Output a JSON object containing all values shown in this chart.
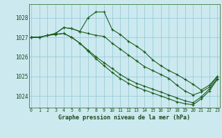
{
  "title": "Graphe pression niveau de la mer (hPa)",
  "bg_color": "#cce9f0",
  "grid_color": "#99ccd8",
  "line_color": "#1a5c1a",
  "ylim": [
    1023.4,
    1028.7
  ],
  "xlim": [
    -0.3,
    23.3
  ],
  "yticks": [
    1024,
    1025,
    1026,
    1027,
    1028
  ],
  "xticks": [
    0,
    1,
    2,
    3,
    4,
    5,
    6,
    7,
    8,
    9,
    10,
    11,
    12,
    13,
    14,
    15,
    16,
    17,
    18,
    19,
    20,
    21,
    22,
    23
  ],
  "series": [
    [
      1027.0,
      1027.0,
      1027.1,
      1027.2,
      1027.5,
      1027.45,
      1027.3,
      1028.0,
      1028.3,
      1028.3,
      1027.4,
      1027.15,
      1026.8,
      1026.55,
      1026.25,
      1025.85,
      1025.55,
      1025.3,
      1025.1,
      1024.85,
      1024.6,
      1024.3,
      1024.55,
      1025.0
    ],
    [
      1027.0,
      1027.0,
      1027.1,
      1027.2,
      1027.5,
      1027.45,
      1027.3,
      1027.2,
      1027.1,
      1027.05,
      1026.7,
      1026.4,
      1026.1,
      1025.8,
      1025.5,
      1025.3,
      1025.1,
      1024.9,
      1024.55,
      1024.25,
      1024.05,
      1024.2,
      1024.45,
      1025.0
    ],
    [
      1027.0,
      1027.0,
      1027.1,
      1027.15,
      1027.2,
      1027.0,
      1026.7,
      1026.35,
      1026.0,
      1025.7,
      1025.4,
      1025.1,
      1024.85,
      1024.65,
      1024.5,
      1024.35,
      1024.2,
      1024.05,
      1023.9,
      1023.75,
      1023.65,
      1023.95,
      1024.35,
      1024.9
    ],
    [
      1027.0,
      1027.0,
      1027.1,
      1027.15,
      1027.2,
      1027.0,
      1026.7,
      1026.3,
      1025.9,
      1025.55,
      1025.2,
      1024.9,
      1024.65,
      1024.45,
      1024.3,
      1024.15,
      1024.0,
      1023.85,
      1023.7,
      1023.6,
      1023.55,
      1023.85,
      1024.25,
      1024.85
    ]
  ]
}
